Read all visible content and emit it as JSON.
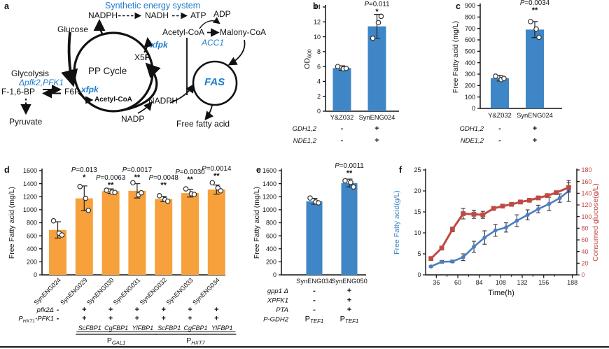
{
  "colors": {
    "bar_blue": "#3e86c6",
    "bar_orange": "#f7a13c",
    "line_blue": "#4d7ebf",
    "line_red": "#bf4a44",
    "accent_blue_text": "#1f7ccc",
    "axis_black": "#1a1a1a",
    "point_stroke": "#333333"
  },
  "panel_a": {
    "label": "a",
    "title": "Synthetic energy system",
    "glucose": "Glucose",
    "nadph_top": "NADPH",
    "nadh": "NADH",
    "atp": "ATP",
    "adp": "ADP",
    "acetyl_coa_top": "Acetyl-CoA",
    "malonyl_coa": "Malony-CoA",
    "acc1": "ACC1",
    "xfpk_upper": "xfpk",
    "x5p_main": "X5",
    "x5p_bold": "P",
    "pp_cycle": "PP Cycle",
    "fas": "FAS",
    "glycolysis": "Glycolysis",
    "pfk_mutation": "Δpfk2,PFK1",
    "f16bp": "F-1,6-BP",
    "f6p": "F6P",
    "xfpk_lower": "xfpk",
    "acetyl_coa_small": "Acetyl-CoA",
    "nadph_mid": "NADPH",
    "nadp": "NADP",
    "pyruvate": "Pyruvate",
    "free_fatty_acid": "Free fatty acid"
  },
  "chart_data": [
    {
      "id": "b",
      "panel_label": "b",
      "type": "bar",
      "categories": [
        "Y&Z032",
        "SynENG024"
      ],
      "values": [
        5.8,
        11.4
      ],
      "errors": [
        0.3,
        1.6
      ],
      "points": [
        [
          6.0,
          5.7,
          5.75
        ],
        [
          9.8,
          11.9,
          12.75
        ]
      ],
      "p_labels": [
        null,
        "P=0.011"
      ],
      "sig": [
        null,
        "*"
      ],
      "ylabel": "OD_600",
      "ylim": [
        0,
        14
      ],
      "ystep": 2,
      "bar_color": "#3e86c6",
      "genotype_rows": [
        {
          "label": "GDH1,2",
          "values": [
            "-",
            "+"
          ]
        },
        {
          "label": "NDE1,2",
          "values": [
            "-",
            "+"
          ]
        }
      ]
    },
    {
      "id": "c",
      "panel_label": "c",
      "type": "bar",
      "categories": [
        "Y&Z032",
        "SynENG024"
      ],
      "values": [
        265,
        690
      ],
      "errors": [
        25,
        70
      ],
      "points": [
        [
          282,
          252,
          262
        ],
        [
          760,
          695,
          622
        ]
      ],
      "p_labels": [
        null,
        "P=0.0034"
      ],
      "sig": [
        null,
        "**"
      ],
      "ylabel": "Free Fatty acid (mg/L)",
      "ylim": [
        0,
        900
      ],
      "ystep": 100,
      "bar_color": "#3e86c6",
      "genotype_rows": [
        {
          "label": "GDH1,2",
          "values": [
            "-",
            "+"
          ]
        },
        {
          "label": "NDE1,2",
          "values": [
            "-",
            "+"
          ]
        }
      ]
    },
    {
      "id": "d",
      "panel_label": "d",
      "type": "bar",
      "categories": [
        "SynENG024",
        "SynENG029",
        "SynENG030",
        "SynENG031",
        "SynENG032",
        "SynENG033",
        "SynENG034"
      ],
      "values": [
        690,
        1175,
        1285,
        1290,
        1165,
        1255,
        1310
      ],
      "errors": [
        125,
        190,
        35,
        110,
        40,
        60,
        70
      ],
      "points": [
        [
          830,
          640,
          612
        ],
        [
          1355,
          1175,
          990
        ],
        [
          1300,
          1270,
          1265
        ],
        [
          1415,
          1230,
          1260
        ],
        [
          1215,
          1155,
          1130
        ],
        [
          1320,
          1245,
          1235
        ],
        [
          1415,
          1335,
          1290
        ]
      ],
      "p_labels": [
        null,
        "P=0.013",
        "P=0.0063",
        "P=0.0017",
        "P=0.0048",
        "P=0.0030",
        "P=0.0014"
      ],
      "sig": [
        null,
        "*",
        "**",
        "**",
        "**",
        "**",
        "**"
      ],
      "ylabel": "Free Fatty acid (mg/L)",
      "ylim": [
        0,
        1600
      ],
      "ystep": 200,
      "bar_color": "#f7a13c",
      "genotype_rows": [
        {
          "label": "pfk2Δ",
          "values": [
            "-",
            "+",
            "+",
            "+",
            "+",
            "+",
            "+"
          ]
        },
        {
          "label": "P_HXT1_-PFK1",
          "values": [
            "-",
            "+",
            "+",
            "+",
            "+",
            "+",
            "+"
          ]
        }
      ],
      "gene_row": [
        "",
        "ScFBP1",
        "CgFBP1",
        "YlFBP1",
        "ScFBP1",
        "CgFBP1",
        "YlFBP1"
      ],
      "promoter_groups": [
        {
          "label": "P_GAL1",
          "from": 1,
          "to": 3
        },
        {
          "label": "P_HXT7",
          "from": 4,
          "to": 6
        }
      ]
    },
    {
      "id": "e",
      "panel_label": "e",
      "type": "bar",
      "categories": [
        "SynENG034",
        "SynENG050"
      ],
      "values": [
        1130,
        1410
      ],
      "errors": [
        45,
        60
      ],
      "points": [
        [
          1180,
          1120,
          1105
        ],
        [
          1445,
          1420,
          1350
        ]
      ],
      "p_labels": [
        null,
        "P=0.0011"
      ],
      "sig": [
        null,
        "**"
      ],
      "ylabel": "Free Fatty acid (mg/L)",
      "ylim": [
        0,
        1600
      ],
      "ystep": 200,
      "bar_color": "#3e86c6",
      "genotype_rows": [
        {
          "label": "gpp1 Δ",
          "values": [
            "-",
            "+"
          ]
        },
        {
          "label": "XPFK1",
          "values": [
            "-",
            "+"
          ]
        },
        {
          "label": "PTA",
          "values": [
            "-",
            "+"
          ]
        },
        {
          "label": "P-GDH2",
          "values": [
            "P_TEF1",
            "P_TEF1"
          ]
        }
      ]
    },
    {
      "id": "f",
      "panel_label": "f",
      "type": "line",
      "xlabel": "Time(h)",
      "xticks": [
        36,
        60,
        84,
        108,
        132,
        156,
        188
      ],
      "xlim": [
        24,
        193
      ],
      "left_axis": {
        "label": "Free Fatty acid(g/L)",
        "lim": [
          0,
          25
        ],
        "step": 5,
        "color": "#3e86c6"
      },
      "right_axis": {
        "label": "Consumed glucose(g/L)",
        "lim": [
          0,
          180
        ],
        "step": 20,
        "color": "#bf4a44"
      },
      "series": [
        {
          "name": "Free Fatty acid",
          "axis": "left",
          "color": "#4d7ebf",
          "marker": "circle",
          "x": [
            30,
            42,
            54,
            66,
            78,
            90,
            102,
            114,
            126,
            138,
            150,
            162,
            174,
            184
          ],
          "y": [
            2.0,
            3.1,
            3.2,
            4.2,
            6.7,
            8.9,
            10.6,
            11.3,
            12.9,
            14.3,
            15.7,
            16.9,
            18.3,
            20.0
          ],
          "err": [
            0.2,
            0.3,
            0.3,
            0.8,
            1.3,
            1.6,
            1.4,
            1.1,
            1.4,
            1.2,
            0.9,
            1.6,
            1.0,
            2.5
          ]
        },
        {
          "name": "Consumed glucose",
          "axis": "right",
          "color": "#bf4a44",
          "marker": "square",
          "x": [
            30,
            42,
            54,
            66,
            78,
            88,
            100,
            110,
            120,
            130,
            140,
            150,
            160,
            170,
            184
          ],
          "y": [
            28,
            46,
            78,
            105,
            104,
            103,
            114,
            118,
            121,
            125,
            128,
            132,
            136,
            141,
            150
          ],
          "err": [
            3,
            3,
            4,
            9,
            7,
            6,
            3,
            2,
            2,
            2,
            2,
            2,
            2,
            3,
            8
          ]
        }
      ]
    }
  ]
}
